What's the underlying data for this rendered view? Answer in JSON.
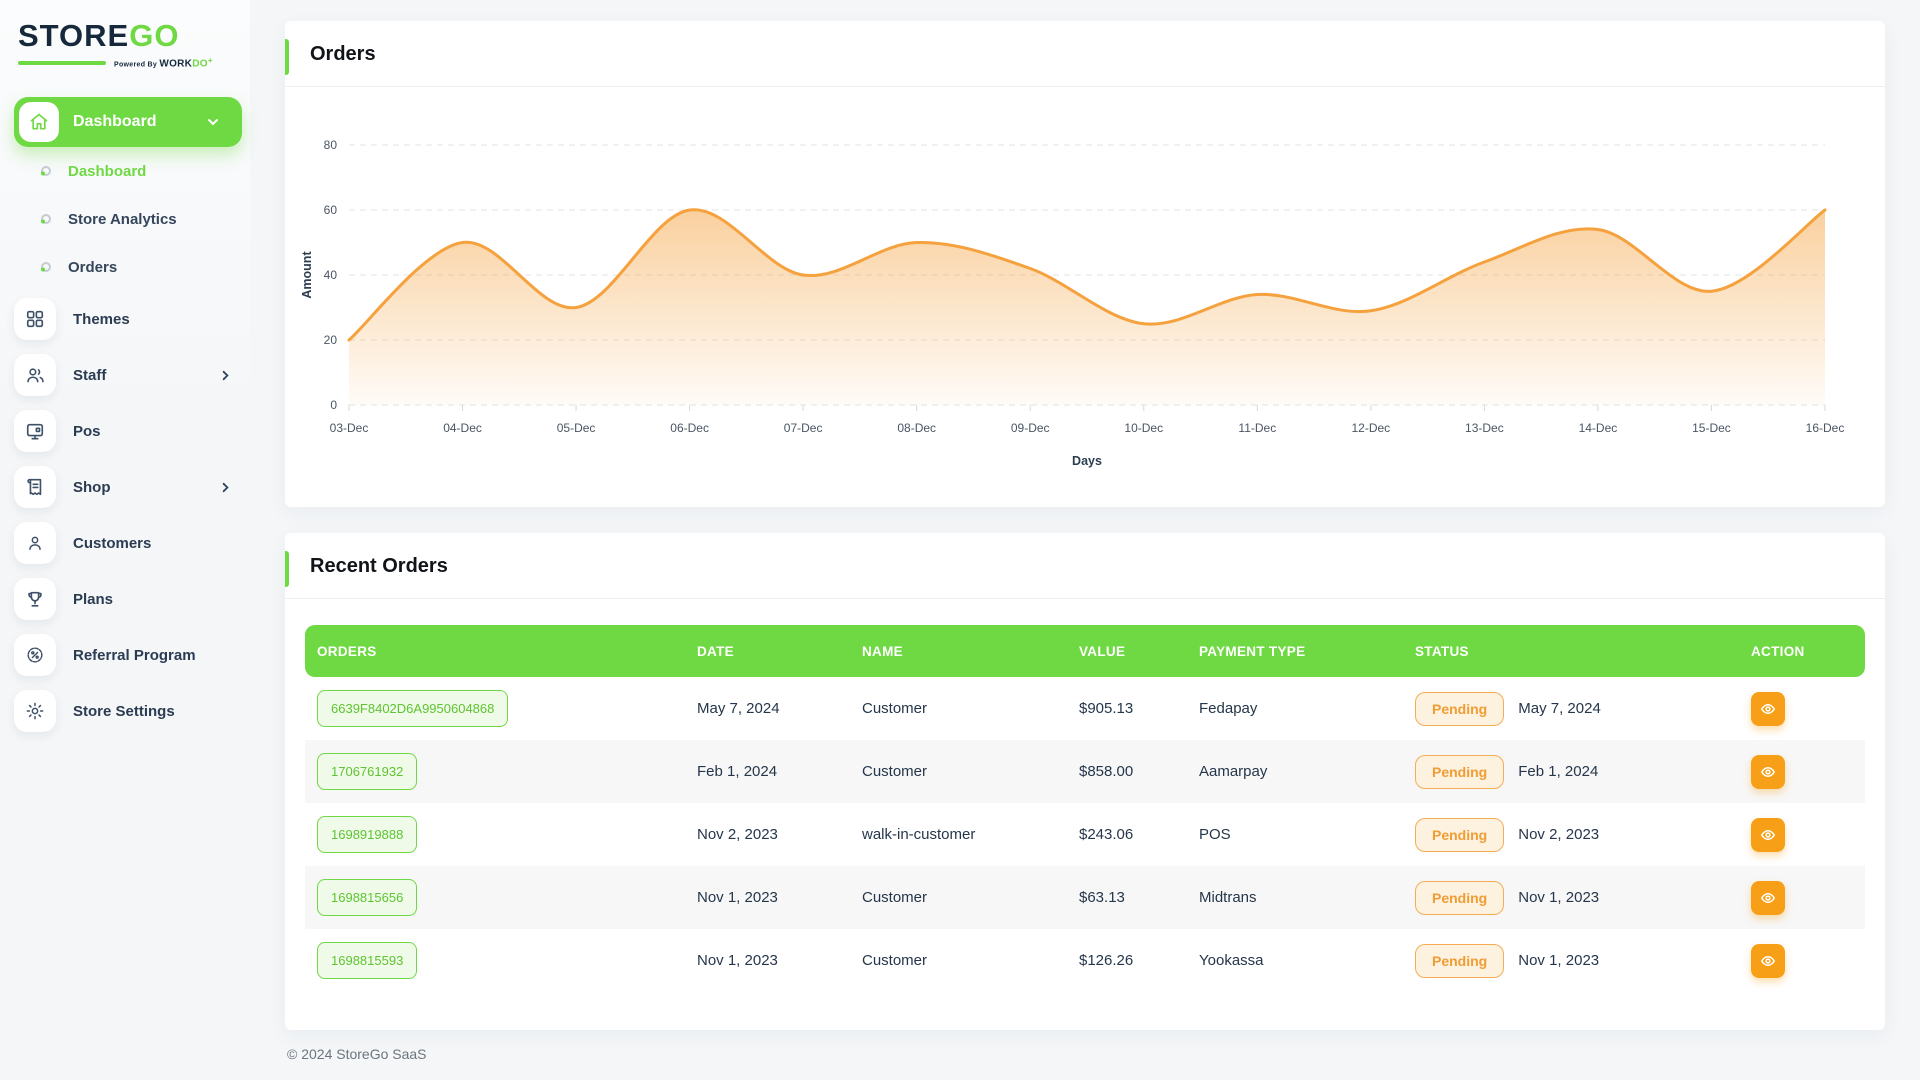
{
  "brand": {
    "logo_part1": "STORE",
    "logo_part2": "GO",
    "powered_by": "Powered By",
    "maker_part1": "WORK",
    "maker_part2": "DO",
    "maker_plus": "+"
  },
  "sidebar": {
    "group": {
      "label": "Dashboard"
    },
    "sub_items": [
      {
        "label": "Dashboard",
        "active": true
      },
      {
        "label": "Store Analytics",
        "active": false
      },
      {
        "label": "Orders",
        "active": false
      }
    ],
    "items": [
      {
        "label": "Themes",
        "icon": "grid-icon",
        "chevron": false
      },
      {
        "label": "Staff",
        "icon": "users-icon",
        "chevron": true
      },
      {
        "label": "Pos",
        "icon": "pos-icon",
        "chevron": false
      },
      {
        "label": "Shop",
        "icon": "receipt-icon",
        "chevron": true
      },
      {
        "label": "Customers",
        "icon": "user-icon",
        "chevron": false
      },
      {
        "label": "Plans",
        "icon": "trophy-icon",
        "chevron": false
      },
      {
        "label": "Referral Program",
        "icon": "discount-badge-icon",
        "chevron": false
      },
      {
        "label": "Store Settings",
        "icon": "gear-icon",
        "chevron": false
      }
    ]
  },
  "orders_card": {
    "title": "Orders"
  },
  "chart_data": {
    "type": "area",
    "title": "Orders",
    "x": [
      "03-Dec",
      "04-Dec",
      "05-Dec",
      "06-Dec",
      "07-Dec",
      "08-Dec",
      "09-Dec",
      "10-Dec",
      "11-Dec",
      "12-Dec",
      "13-Dec",
      "14-Dec",
      "15-Dec",
      "16-Dec"
    ],
    "series": [
      {
        "name": "Amount",
        "values": [
          20,
          50,
          30,
          60,
          40,
          50,
          42,
          25,
          34,
          29,
          44,
          54,
          35,
          60
        ]
      }
    ],
    "xlabel": "Days",
    "ylabel": "Amount",
    "ylim": [
      0,
      80
    ],
    "yticks": [
      0,
      20,
      40,
      60,
      80
    ],
    "grid": "dashed-horizontal",
    "legend": "none",
    "smooth": true,
    "fill": "gradient",
    "line_color": "#f5a13d"
  },
  "recent_orders": {
    "title": "Recent Orders",
    "columns": [
      "ORDERS",
      "DATE",
      "NAME",
      "VALUE",
      "PAYMENT TYPE",
      "STATUS",
      "ACTION"
    ],
    "rows": [
      {
        "order_id": "6639F8402D6A9950604868",
        "date": "May 7, 2024",
        "name": "Customer",
        "value": "$905.13",
        "payment_type": "Fedapay",
        "status": "Pending",
        "status_date": "May 7, 2024"
      },
      {
        "order_id": "1706761932",
        "date": "Feb 1, 2024",
        "name": "Customer",
        "value": "$858.00",
        "payment_type": "Aamarpay",
        "status": "Pending",
        "status_date": "Feb 1, 2024"
      },
      {
        "order_id": "1698919888",
        "date": "Nov 2, 2023",
        "name": "walk-in-customer",
        "value": "$243.06",
        "payment_type": "POS",
        "status": "Pending",
        "status_date": "Nov 2, 2023"
      },
      {
        "order_id": "1698815656",
        "date": "Nov 1, 2023",
        "name": "Customer",
        "value": "$63.13",
        "payment_type": "Midtrans",
        "status": "Pending",
        "status_date": "Nov 1, 2023"
      },
      {
        "order_id": "1698815593",
        "date": "Nov 1, 2023",
        "name": "Customer",
        "value": "$126.26",
        "payment_type": "Yookassa",
        "status": "Pending",
        "status_date": "Nov 1, 2023"
      }
    ]
  },
  "footer": {
    "copyright": "© 2024 StoreGo SaaS"
  },
  "colors": {
    "green": "#6fd943",
    "dark": "#25364a",
    "orange": "#f7a017",
    "chart-line": "#f5a13d",
    "pending-text": "#f09d33",
    "stripe": "#f7f7f7"
  }
}
